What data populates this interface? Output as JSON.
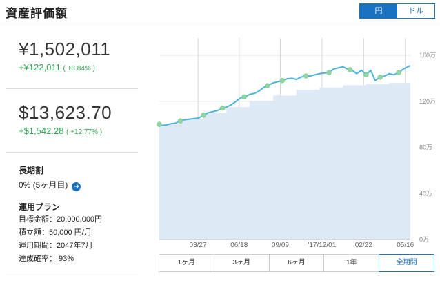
{
  "header": {
    "title": "資産評価額"
  },
  "currency_toggle": {
    "yen_label": "円",
    "dollar_label": "ドル",
    "selected": "円"
  },
  "summary": {
    "jpy": {
      "value": "¥1,502,011",
      "gain": "+¥122,011",
      "gain_pct": "( +8.84% )"
    },
    "usd": {
      "value": "$13,623.70",
      "gain": "+$1,542.28",
      "gain_pct": "( +12.77% )"
    }
  },
  "long_term_discount": {
    "label": "長期割",
    "value": "0% (5ヶ月目)"
  },
  "plan": {
    "label": "運用プラン",
    "items": [
      {
        "text": "目標金額：20,000,000円"
      },
      {
        "text": "積立額：50,000 円/月"
      },
      {
        "text": "運用期間：2047年7月"
      },
      {
        "text": "達成確率： 93%"
      }
    ]
  },
  "period_buttons": [
    "1ヶ月",
    "3ヶ月",
    "6ヶ月",
    "1年",
    "全期間"
  ],
  "selected_period": "全期間",
  "colors": {
    "accent": "#1a73c1",
    "gain": "#2da84f",
    "line": "#4ab3df",
    "area": "#dde9f5",
    "marker": "#8fd6a4"
  },
  "chart_data": {
    "type": "area",
    "x_ticks": [
      "03/27",
      "06/18",
      "09/09",
      "'17/12/01",
      "02/22",
      "05/16"
    ],
    "y_ticks": [
      "0万",
      "40万",
      "80万",
      "120万",
      "160万"
    ],
    "ylim": [
      0,
      1750000
    ],
    "y_units": "yen",
    "x_range_days": [
      0,
      500
    ],
    "x_tick_days": [
      77,
      159,
      241,
      324,
      407,
      490
    ],
    "series": [
      {
        "type": "line",
        "x": [
          0,
          5,
          14,
          23,
          32,
          42,
          51,
          60,
          70,
          79,
          88,
          97,
          106,
          116,
          125,
          134,
          143,
          153,
          162,
          171,
          180,
          190,
          199,
          208,
          217,
          227,
          236,
          245,
          254,
          264,
          273,
          282,
          291,
          301,
          310,
          319,
          328,
          338,
          347,
          356,
          366,
          375,
          384,
          393,
          403,
          412,
          421,
          430,
          440,
          449,
          458,
          467,
          477,
          486,
          495,
          500
        ],
        "values": [
          1000000,
          990000,
          995000,
          1005000,
          1010000,
          1030000,
          1040000,
          1045000,
          1050000,
          1055000,
          1080000,
          1100000,
          1110000,
          1120000,
          1140000,
          1150000,
          1170000,
          1200000,
          1230000,
          1240000,
          1260000,
          1270000,
          1290000,
          1320000,
          1340000,
          1360000,
          1370000,
          1380000,
          1395000,
          1400000,
          1390000,
          1410000,
          1420000,
          1420000,
          1430000,
          1440000,
          1445000,
          1450000,
          1480000,
          1490000,
          1500000,
          1480000,
          1470000,
          1440000,
          1470000,
          1430000,
          1470000,
          1380000,
          1410000,
          1420000,
          1440000,
          1430000,
          1450000,
          1480000,
          1500000,
          1510000
        ]
      },
      {
        "type": "area",
        "x": [
          0,
          0,
          42,
          42,
          88,
          88,
          134,
          134,
          180,
          180,
          227,
          227,
          273,
          273,
          319,
          319,
          366,
          366,
          412,
          412,
          458,
          458,
          500,
          500
        ],
        "values": [
          300000,
          1000000,
          1000000,
          1050000,
          1050000,
          1100000,
          1100000,
          1150000,
          1150000,
          1200000,
          1200000,
          1250000,
          1250000,
          1300000,
          1300000,
          1320000,
          1320000,
          1340000,
          1340000,
          1350000,
          1350000,
          1360000,
          1360000,
          1380000
        ]
      }
    ],
    "markers_x": [
      0,
      42,
      88,
      126,
      169,
      215,
      245,
      292,
      338,
      380,
      412,
      440,
      477
    ]
  }
}
